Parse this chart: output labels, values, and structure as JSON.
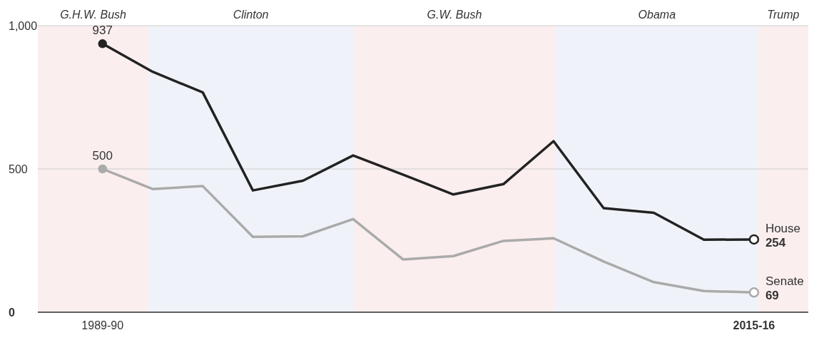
{
  "chart_data": {
    "type": "line",
    "x": [
      "1989",
      "1991",
      "1993",
      "1995",
      "1997",
      "1999",
      "2001",
      "2003",
      "2005",
      "2007",
      "2009",
      "2011",
      "2013",
      "2015"
    ],
    "xlim": [
      "1986-06",
      "2017-03"
    ],
    "xticks": [
      {
        "value": "1989",
        "label": "1989-90"
      },
      {
        "value": "2015",
        "label": "2015-16"
      }
    ],
    "ylim": [
      0,
      1000
    ],
    "yticks": [
      0,
      500,
      {
        "value": 1000,
        "label": "1,000"
      }
    ],
    "grid": "y",
    "line_style": "solid",
    "legend": false,
    "series": [
      {
        "name": "House",
        "color": "#222222",
        "values": [
          937,
          839,
          767,
          425,
          459,
          547,
          480,
          411,
          447,
          597,
          363,
          347,
          253,
          254
        ],
        "value_labels": [
          "937",
          null,
          null,
          null,
          null,
          null,
          null,
          null,
          null,
          null,
          null,
          null,
          null,
          "254"
        ]
      },
      {
        "name": "Senate",
        "color": "#aaaaaa",
        "values": [
          500,
          430,
          440,
          263,
          265,
          325,
          184,
          196,
          249,
          258,
          177,
          105,
          74,
          69
        ],
        "value_labels": [
          "500",
          null,
          null,
          null,
          null,
          null,
          null,
          null,
          null,
          null,
          null,
          null,
          null,
          "69"
        ]
      }
    ],
    "bands": [
      {
        "axis": "x",
        "from": "1986-06",
        "to": "1990-11",
        "label": "G.H.W. Bush",
        "color": "#fbeeee"
      },
      {
        "axis": "x",
        "from": "1990-11",
        "to": "1999-01",
        "label": "Clinton",
        "color": "#eff3f9"
      },
      {
        "axis": "x",
        "from": "1999-01",
        "to": "2007-02",
        "label": "G.W. Bush",
        "color": "#fbeeee"
      },
      {
        "axis": "x",
        "from": "2007-02",
        "to": "2015-03",
        "label": "Obama",
        "color": "#eff3f9"
      },
      {
        "axis": "x",
        "from": "2015-03",
        "to": "2017-03",
        "label": "Trump",
        "color": "#fbeeee"
      }
    ]
  }
}
